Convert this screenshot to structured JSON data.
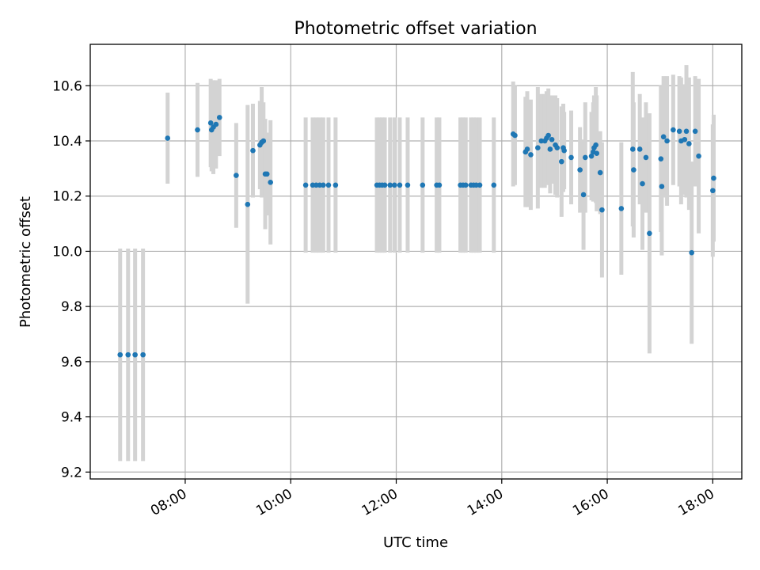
{
  "chart_data": {
    "type": "scatter",
    "title": "Photometric offset variation",
    "xlabel": "UTC time",
    "ylabel": "Photometric offset",
    "xlim": [
      "06:12",
      "18:33"
    ],
    "ylim": [
      9.175,
      10.75
    ],
    "x_ticks": [
      "08:00",
      "10:00",
      "12:00",
      "14:00",
      "16:00",
      "18:00"
    ],
    "y_ticks": [
      "9.2",
      "9.4",
      "9.6",
      "9.8",
      "10.0",
      "10.2",
      "10.4",
      "10.6"
    ],
    "grid": true,
    "colors": {
      "point": "#1f77b4",
      "errorbar": "#d3d3d3",
      "grid": "#b0b0b0",
      "axes": "#000000"
    },
    "points": [
      {
        "x": "06:46",
        "y": 9.625,
        "err": 0.385
      },
      {
        "x": "06:55",
        "y": 9.625,
        "err": 0.385
      },
      {
        "x": "07:03",
        "y": 9.625,
        "err": 0.385
      },
      {
        "x": "07:12",
        "y": 9.625,
        "err": 0.385
      },
      {
        "x": "07:40",
        "y": 10.41,
        "err": 0.165
      },
      {
        "x": "08:14",
        "y": 10.44,
        "err": 0.17
      },
      {
        "x": "08:29",
        "y": 10.465,
        "err": 0.16
      },
      {
        "x": "08:30",
        "y": 10.44,
        "err": 0.15
      },
      {
        "x": "08:32",
        "y": 10.45,
        "err": 0.17
      },
      {
        "x": "08:35",
        "y": 10.46,
        "err": 0.16
      },
      {
        "x": "08:39",
        "y": 10.485,
        "err": 0.14
      },
      {
        "x": "08:58",
        "y": 10.275,
        "err": 0.19
      },
      {
        "x": "09:11",
        "y": 10.17,
        "err": 0.36
      },
      {
        "x": "09:17",
        "y": 10.365,
        "err": 0.17
      },
      {
        "x": "09:25",
        "y": 10.385,
        "err": 0.16
      },
      {
        "x": "09:27",
        "y": 10.395,
        "err": 0.2
      },
      {
        "x": "09:29",
        "y": 10.4,
        "err": 0.14
      },
      {
        "x": "09:31",
        "y": 10.28,
        "err": 0.2
      },
      {
        "x": "09:33",
        "y": 10.28,
        "err": 0.15
      },
      {
        "x": "09:37",
        "y": 10.25,
        "err": 0.225
      },
      {
        "x": "10:17",
        "y": 10.24,
        "err": 0.245
      },
      {
        "x": "10:25",
        "y": 10.24,
        "err": 0.245
      },
      {
        "x": "10:29",
        "y": 10.24,
        "err": 0.245
      },
      {
        "x": "10:33",
        "y": 10.24,
        "err": 0.245
      },
      {
        "x": "10:37",
        "y": 10.24,
        "err": 0.245
      },
      {
        "x": "10:43",
        "y": 10.24,
        "err": 0.245
      },
      {
        "x": "10:51",
        "y": 10.24,
        "err": 0.245
      },
      {
        "x": "11:38",
        "y": 10.24,
        "err": 0.245
      },
      {
        "x": "11:41",
        "y": 10.24,
        "err": 0.245
      },
      {
        "x": "11:44",
        "y": 10.24,
        "err": 0.245
      },
      {
        "x": "11:47",
        "y": 10.24,
        "err": 0.245
      },
      {
        "x": "11:53",
        "y": 10.24,
        "err": 0.245
      },
      {
        "x": "11:58",
        "y": 10.24,
        "err": 0.245
      },
      {
        "x": "12:04",
        "y": 10.24,
        "err": 0.245
      },
      {
        "x": "12:13",
        "y": 10.24,
        "err": 0.245
      },
      {
        "x": "12:30",
        "y": 10.24,
        "err": 0.245
      },
      {
        "x": "12:46",
        "y": 10.24,
        "err": 0.245
      },
      {
        "x": "12:49",
        "y": 10.24,
        "err": 0.245
      },
      {
        "x": "13:13",
        "y": 10.24,
        "err": 0.245
      },
      {
        "x": "13:16",
        "y": 10.24,
        "err": 0.245
      },
      {
        "x": "13:19",
        "y": 10.24,
        "err": 0.245
      },
      {
        "x": "13:25",
        "y": 10.24,
        "err": 0.245
      },
      {
        "x": "13:28",
        "y": 10.24,
        "err": 0.245
      },
      {
        "x": "13:31",
        "y": 10.24,
        "err": 0.245
      },
      {
        "x": "13:35",
        "y": 10.24,
        "err": 0.245
      },
      {
        "x": "13:51",
        "y": 10.24,
        "err": 0.245
      },
      {
        "x": "14:13",
        "y": 10.425,
        "err": 0.19
      },
      {
        "x": "14:15",
        "y": 10.42,
        "err": 0.18
      },
      {
        "x": "14:27",
        "y": 10.36,
        "err": 0.2
      },
      {
        "x": "14:29",
        "y": 10.37,
        "err": 0.21
      },
      {
        "x": "14:33",
        "y": 10.35,
        "err": 0.2
      },
      {
        "x": "14:41",
        "y": 10.375,
        "err": 0.22
      },
      {
        "x": "14:45",
        "y": 10.4,
        "err": 0.17
      },
      {
        "x": "14:49",
        "y": 10.4,
        "err": 0.17
      },
      {
        "x": "14:51",
        "y": 10.41,
        "err": 0.17
      },
      {
        "x": "14:53",
        "y": 10.42,
        "err": 0.17
      },
      {
        "x": "14:55",
        "y": 10.37,
        "err": 0.16
      },
      {
        "x": "14:57",
        "y": 10.405,
        "err": 0.16
      },
      {
        "x": "15:01",
        "y": 10.385,
        "err": 0.18
      },
      {
        "x": "15:03",
        "y": 10.375,
        "err": 0.18
      },
      {
        "x": "15:08",
        "y": 10.325,
        "err": 0.2
      },
      {
        "x": "15:10",
        "y": 10.375,
        "err": 0.16
      },
      {
        "x": "15:11",
        "y": 10.365,
        "err": 0.14
      },
      {
        "x": "15:19",
        "y": 10.34,
        "err": 0.17
      },
      {
        "x": "15:29",
        "y": 10.295,
        "err": 0.155
      },
      {
        "x": "15:33",
        "y": 10.205,
        "err": 0.2
      },
      {
        "x": "15:35",
        "y": 10.34,
        "err": 0.2
      },
      {
        "x": "15:42",
        "y": 10.345,
        "err": 0.16
      },
      {
        "x": "15:44",
        "y": 10.36,
        "err": 0.18
      },
      {
        "x": "15:45",
        "y": 10.375,
        "err": 0.19
      },
      {
        "x": "15:47",
        "y": 10.385,
        "err": 0.21
      },
      {
        "x": "15:48",
        "y": 10.355,
        "err": 0.21
      },
      {
        "x": "15:52",
        "y": 10.285,
        "err": 0.15
      },
      {
        "x": "15:54",
        "y": 10.15,
        "err": 0.245
      },
      {
        "x": "16:16",
        "y": 10.155,
        "err": 0.24
      },
      {
        "x": "16:29",
        "y": 10.37,
        "err": 0.28
      },
      {
        "x": "16:30",
        "y": 10.295,
        "err": 0.245
      },
      {
        "x": "16:37",
        "y": 10.37,
        "err": 0.2
      },
      {
        "x": "16:40",
        "y": 10.245,
        "err": 0.24
      },
      {
        "x": "16:44",
        "y": 10.34,
        "err": 0.2
      },
      {
        "x": "16:48",
        "y": 10.065,
        "err": 0.435
      },
      {
        "x": "17:01",
        "y": 10.335,
        "err": 0.265
      },
      {
        "x": "17:02",
        "y": 10.235,
        "err": 0.25
      },
      {
        "x": "17:04",
        "y": 10.415,
        "err": 0.22
      },
      {
        "x": "17:08",
        "y": 10.4,
        "err": 0.235
      },
      {
        "x": "17:15",
        "y": 10.44,
        "err": 0.2
      },
      {
        "x": "17:22",
        "y": 10.435,
        "err": 0.2
      },
      {
        "x": "17:24",
        "y": 10.4,
        "err": 0.23
      },
      {
        "x": "17:28",
        "y": 10.405,
        "err": 0.2
      },
      {
        "x": "17:30",
        "y": 10.435,
        "err": 0.24
      },
      {
        "x": "17:33",
        "y": 10.39,
        "err": 0.24
      },
      {
        "x": "17:36",
        "y": 9.995,
        "err": 0.33
      },
      {
        "x": "17:40",
        "y": 10.435,
        "err": 0.2
      },
      {
        "x": "17:44",
        "y": 10.345,
        "err": 0.28
      },
      {
        "x": "18:00",
        "y": 10.22,
        "err": 0.24
      },
      {
        "x": "18:01",
        "y": 10.265,
        "err": 0.23
      }
    ]
  }
}
